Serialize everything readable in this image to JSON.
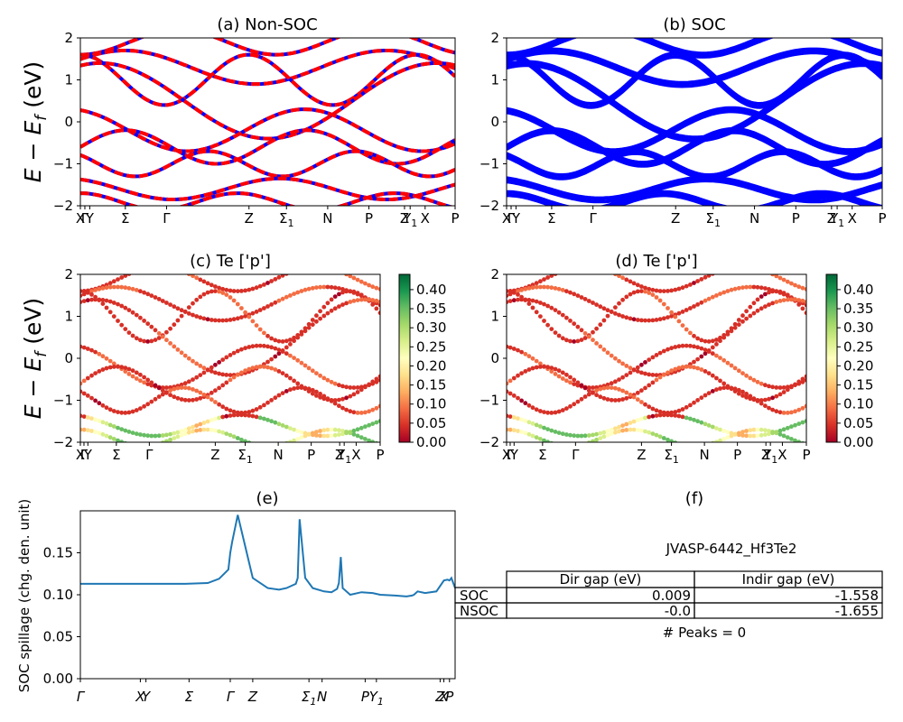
{
  "figure": {
    "ylabel_main": "E − E",
    "ylabel_main_sub": "f",
    "ylabel_main_unit": " (eV)",
    "ylabel_e": "SOC spillage (chg. den. unit)"
  },
  "panels": {
    "a": {
      "title": "(a) Non-SOC"
    },
    "b": {
      "title": "(b) SOC"
    },
    "c": {
      "title": "(c)  Te ['p']"
    },
    "d": {
      "title": "(d) Te ['p']"
    },
    "e": {
      "title": "(e)"
    },
    "f": {
      "title": "(f)"
    }
  },
  "band_axis": {
    "ylim": [
      -2,
      2
    ],
    "yticks": [
      "2",
      "1",
      "0",
      "−1",
      "−2"
    ],
    "kticks": [
      {
        "k": 0.0,
        "label": "X"
      },
      {
        "k": 0.012,
        "label": "Γ"
      },
      {
        "k": 0.025,
        "label": "Y"
      },
      {
        "k": 0.12,
        "label": "Σ"
      },
      {
        "k": 0.23,
        "label": "Γ"
      },
      {
        "k": 0.45,
        "label": "Z"
      },
      {
        "k": 0.55,
        "label": "Σ1"
      },
      {
        "k": 0.66,
        "label": "N"
      },
      {
        "k": 0.77,
        "label": "P"
      },
      {
        "k": 0.865,
        "label": "Z"
      },
      {
        "k": 0.88,
        "label": "Y1"
      },
      {
        "k": 0.92,
        "label": "X"
      },
      {
        "k": 1.0,
        "label": "P"
      }
    ]
  },
  "colorbar": {
    "ticks": [
      "0.40",
      "0.35",
      "0.30",
      "0.25",
      "0.20",
      "0.15",
      "0.10",
      "0.05",
      "0.00"
    ],
    "min": 0.0,
    "max": 0.44,
    "colors": [
      "#a50026",
      "#d73027",
      "#f46d43",
      "#fdae61",
      "#fee08b",
      "#ffffbf",
      "#d9ef8b",
      "#a6d96a",
      "#66bd63",
      "#1a9850",
      "#006837"
    ]
  },
  "chart_data": [
    {
      "panel": "e",
      "type": "line",
      "ylabel": "SOC spillage (chg. den. unit)",
      "ylim": [
        0,
        0.2
      ],
      "yticks": [
        "0.00",
        "0.05",
        "0.10",
        "0.15"
      ],
      "xticks": [
        "Γ",
        "X",
        "Y",
        "Σ",
        "Γ",
        "Z",
        "Σ1",
        "N",
        "P",
        "Y1",
        "Z",
        "X",
        "P"
      ],
      "series": [
        {
          "color": "#1f77b4",
          "x": [
            0.0,
            0.1,
            0.2,
            0.28,
            0.34,
            0.37,
            0.395,
            0.4,
            0.405,
            0.42,
            0.46,
            0.5,
            0.53,
            0.55,
            0.575,
            0.58,
            0.585,
            0.6,
            0.62,
            0.65,
            0.67,
            0.685,
            0.69,
            0.695,
            0.7,
            0.72,
            0.75,
            0.78,
            0.8,
            0.84,
            0.87,
            0.885,
            0.89,
            0.9,
            0.92,
            0.95,
            0.97,
            0.98,
            0.985,
            0.99,
            1.0
          ],
          "y": [
            0.113,
            0.113,
            0.113,
            0.113,
            0.114,
            0.119,
            0.13,
            0.15,
            0.163,
            0.195,
            0.12,
            0.108,
            0.106,
            0.108,
            0.113,
            0.12,
            0.19,
            0.12,
            0.108,
            0.104,
            0.103,
            0.107,
            0.114,
            0.145,
            0.108,
            0.1,
            0.103,
            0.102,
            0.1,
            0.099,
            0.098,
            0.099,
            0.1,
            0.104,
            0.102,
            0.104,
            0.117,
            0.118,
            0.117,
            0.12,
            0.108
          ]
        }
      ]
    }
  ],
  "table": {
    "name": "JVASP-6442_Hf3Te2",
    "headers": [
      "",
      "Dir gap (eV)",
      "Indir gap (eV)"
    ],
    "rows": [
      [
        "SOC",
        "0.009",
        "-1.558"
      ],
      [
        "NSOC",
        "-0.0",
        "-1.655"
      ]
    ],
    "peaks": "# Peaks = 0"
  }
}
